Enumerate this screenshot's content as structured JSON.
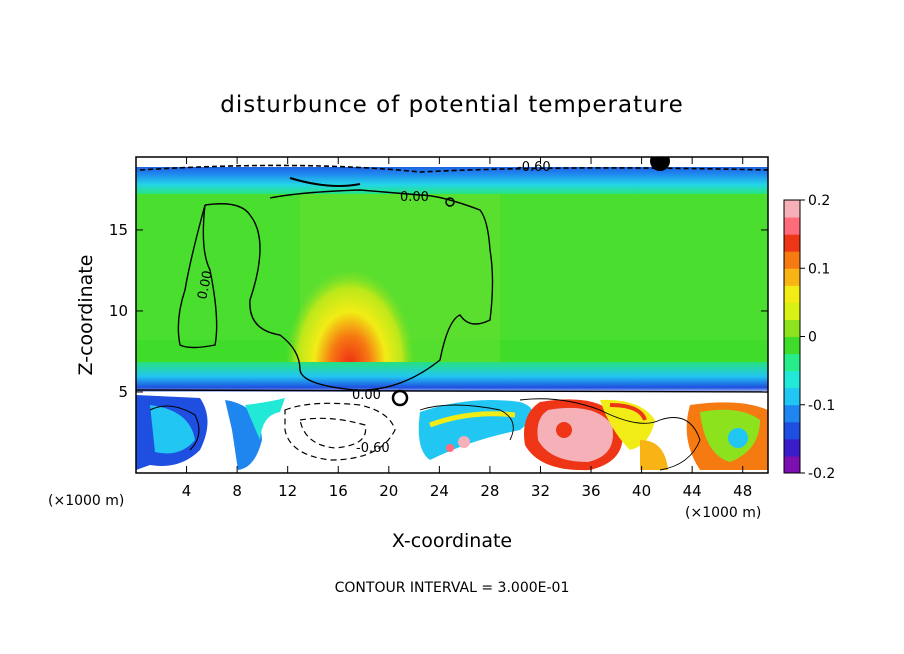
{
  "chart_data": {
    "type": "heatmap",
    "title": "disturbunce of potential temperature",
    "xlabel": "X-coordinate",
    "ylabel": "Z-coordinate",
    "x_unit": "(×1000 m)",
    "z_unit": "(×1000 m)",
    "xlim": [
      0,
      50
    ],
    "ylim": [
      0,
      19.5
    ],
    "x_ticks": [
      "4",
      "8",
      "12",
      "16",
      "20",
      "24",
      "28",
      "32",
      "36",
      "40",
      "44",
      "48"
    ],
    "y_ticks": [
      "5",
      "10",
      "15"
    ],
    "colorbar": {
      "range": [
        -0.2,
        0.2
      ],
      "tick_labels": [
        "0.2",
        "0.1",
        "0",
        "-0.1",
        "-0.2"
      ],
      "colors": [
        "#7b0fb0",
        "#3a1cc8",
        "#1f4fe0",
        "#1f86f0",
        "#22c6f2",
        "#22e8d8",
        "#27ec8a",
        "#40dc2a",
        "#8ce21c",
        "#d8f216",
        "#f2ec16",
        "#f8b414",
        "#f67a12",
        "#ee3616",
        "#ff6b7a",
        "#f5b0b8"
      ]
    },
    "contour_labels": [
      "-0.60",
      "0.00",
      "0.00",
      "0.00",
      "-0.60"
    ],
    "footer": "CONTOUR INTERVAL = 3.000E-01"
  }
}
